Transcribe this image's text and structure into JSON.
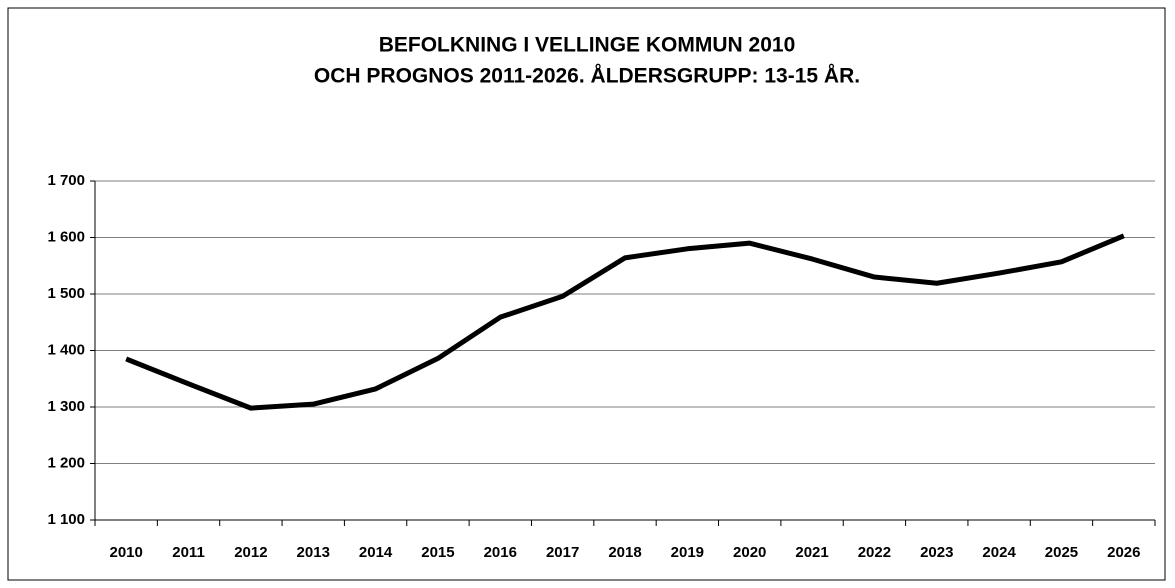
{
  "chart_data": {
    "type": "line",
    "title": [
      "BEFOLKNING I VELLINGE KOMMUN 2010",
      "OCH PROGNOS 2011-2026. ÅLDERSGRUPP: 13-15 ÅR."
    ],
    "categories": [
      "2010",
      "2011",
      "2012",
      "2013",
      "2014",
      "2015",
      "2016",
      "2017",
      "2018",
      "2019",
      "2020",
      "2021",
      "2022",
      "2023",
      "2024",
      "2025",
      "2026"
    ],
    "values": [
      1385,
      1341,
      1298,
      1305,
      1332,
      1386,
      1459,
      1496,
      1564,
      1580,
      1590,
      1562,
      1530,
      1519,
      1537,
      1557,
      1603
    ],
    "color": "#000000",
    "ylim": [
      1100,
      1700
    ],
    "yticks": [
      {
        "value": 1100,
        "label": "1 100"
      },
      {
        "value": 1200,
        "label": "1 200"
      },
      {
        "value": 1300,
        "label": "1 300"
      },
      {
        "value": 1400,
        "label": "1 400"
      },
      {
        "value": 1500,
        "label": "1 500"
      },
      {
        "value": 1600,
        "label": "1 600"
      },
      {
        "value": 1700,
        "label": "1 700"
      }
    ],
    "grid": true
  }
}
